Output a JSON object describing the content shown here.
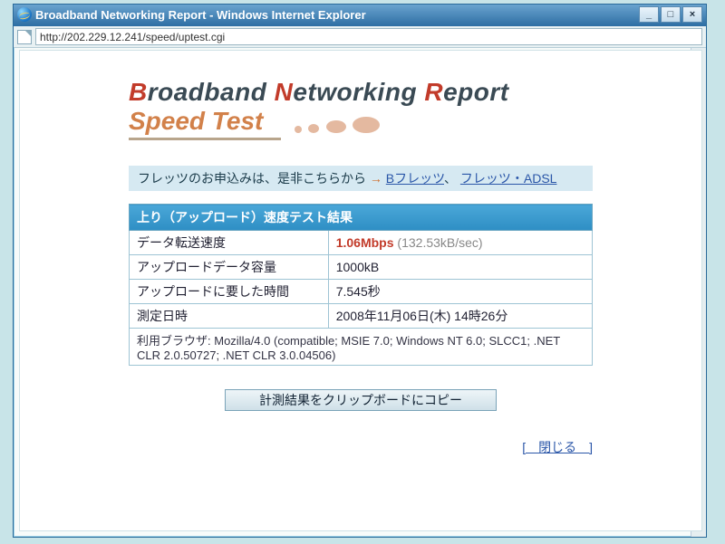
{
  "window": {
    "title": "Broadband Networking Report - Windows Internet Explorer",
    "url": "http://202.229.12.241/speed/uptest.cgi",
    "buttons": {
      "min": "_",
      "max": "□",
      "close": "×"
    }
  },
  "logo": {
    "line1_parts": [
      "B",
      "roadband ",
      "N",
      "etworking ",
      "R",
      "eport"
    ],
    "line2": "Speed Test"
  },
  "promo": {
    "text": "フレッツのお申込みは、是非こちらから",
    "arrow": "→",
    "link1": "Bフレッツ",
    "sep": "、",
    "link2": "フレッツ・ADSL"
  },
  "result": {
    "header": "上り（アップロード）速度テスト結果",
    "rows": [
      {
        "label": "データ転送速度",
        "value": "1.06Mbps",
        "sub": " (132.53kB/sec)",
        "is_speed": true
      },
      {
        "label": "アップロードデータ容量",
        "value": "1000kB"
      },
      {
        "label": "アップロードに要した時間",
        "value": "7.545秒"
      },
      {
        "label": "測定日時",
        "value": "2008年11月06日(木) 14時26分"
      }
    ],
    "ua_label": "利用ブラウザ:",
    "ua": " Mozilla/4.0 (compatible; MSIE 7.0; Windows NT 6.0; SLCC1; .NET CLR 2.0.50727; .NET CLR 3.0.04506)"
  },
  "buttons": {
    "copy": "計測結果をクリップボードにコピー",
    "close": "[　閉じる　]"
  },
  "colors": {
    "accent_red": "#c23b2a",
    "accent_orange": "#d2814a",
    "table_header": "#2e8ec4",
    "promo_bg": "#d6e9f2",
    "link": "#2a56a8"
  }
}
